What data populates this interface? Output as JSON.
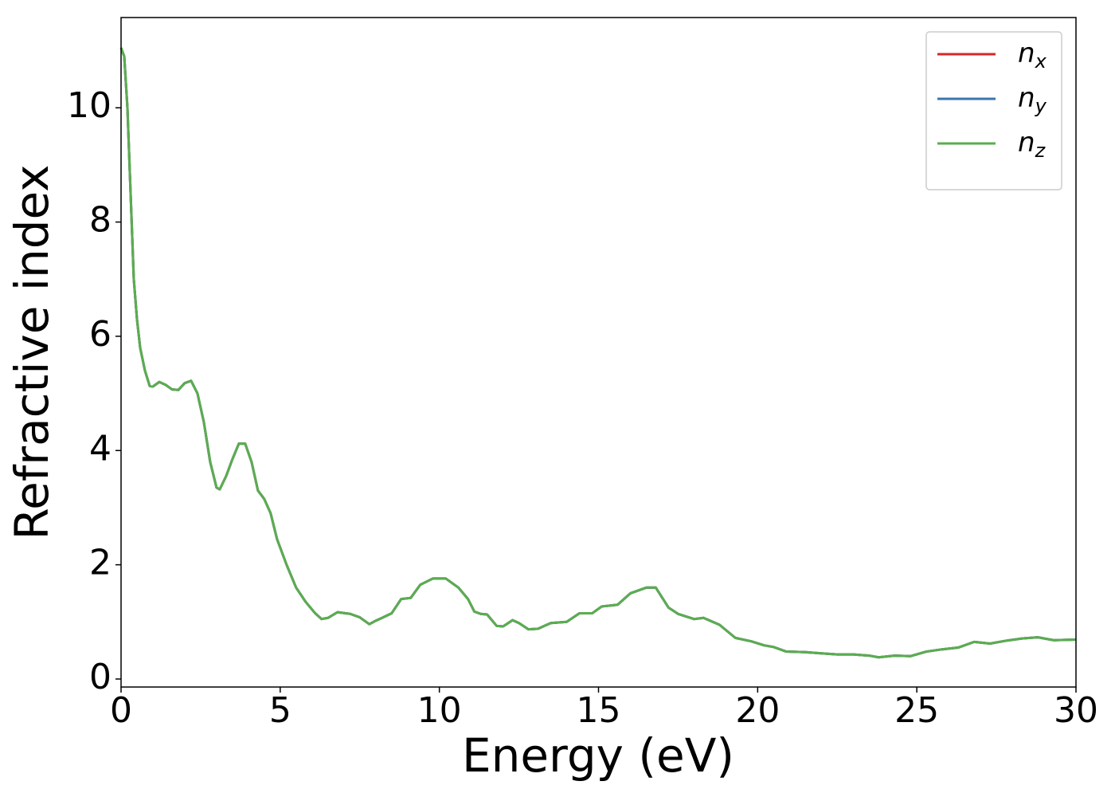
{
  "chart_data": {
    "type": "line",
    "xlabel": "Energy (eV)",
    "ylabel": "Refractive index",
    "x": [
      0,
      0.1,
      0.2,
      0.3,
      0.4,
      0.5,
      0.6,
      0.75,
      0.9,
      1.0,
      1.2,
      1.4,
      1.6,
      1.8,
      2.0,
      2.2,
      2.4,
      2.6,
      2.8,
      3.0,
      3.1,
      3.3,
      3.5,
      3.7,
      3.9,
      4.1,
      4.3,
      4.5,
      4.7,
      4.9,
      5.2,
      5.5,
      5.8,
      6.1,
      6.3,
      6.5,
      6.8,
      7.2,
      7.5,
      7.8,
      8.0,
      8.2,
      8.5,
      8.8,
      9.1,
      9.4,
      9.8,
      10.2,
      10.6,
      10.9,
      11.1,
      11.3,
      11.5,
      11.8,
      12.0,
      12.3,
      12.5,
      12.8,
      13.1,
      13.5,
      14.0,
      14.4,
      14.8,
      15.1,
      15.6,
      16.0,
      16.5,
      16.8,
      17.2,
      17.5,
      18.0,
      18.3,
      18.8,
      19.3,
      19.8,
      20.2,
      20.5,
      20.9,
      21.5,
      22.0,
      22.5,
      23.0,
      23.5,
      23.8,
      24.3,
      24.8,
      25.3,
      25.8,
      26.3,
      26.8,
      27.3,
      27.8,
      28.3,
      28.8,
      29.3,
      30
    ],
    "series": [
      {
        "name": "nx",
        "color": "#d62728",
        "values": [
          11.05,
          10.9,
          10.0,
          8.5,
          7.0,
          6.3,
          5.8,
          5.4,
          5.13,
          5.12,
          5.2,
          5.15,
          5.07,
          5.06,
          5.18,
          5.22,
          5.0,
          4.5,
          3.8,
          3.35,
          3.32,
          3.55,
          3.85,
          4.12,
          4.12,
          3.8,
          3.3,
          3.15,
          2.9,
          2.45,
          2.0,
          1.6,
          1.35,
          1.15,
          1.05,
          1.07,
          1.17,
          1.14,
          1.08,
          0.96,
          1.02,
          1.07,
          1.15,
          1.4,
          1.42,
          1.65,
          1.76,
          1.76,
          1.6,
          1.4,
          1.18,
          1.14,
          1.13,
          0.93,
          0.92,
          1.03,
          0.98,
          0.87,
          0.88,
          0.98,
          1.0,
          1.15,
          1.15,
          1.27,
          1.3,
          1.5,
          1.6,
          1.6,
          1.25,
          1.14,
          1.05,
          1.07,
          0.95,
          0.72,
          0.66,
          0.59,
          0.56,
          0.48,
          0.47,
          0.45,
          0.43,
          0.43,
          0.41,
          0.38,
          0.41,
          0.4,
          0.48,
          0.52,
          0.55,
          0.65,
          0.62,
          0.67,
          0.71,
          0.73,
          0.68,
          0.69
        ]
      },
      {
        "name": "ny",
        "color": "#3b75af",
        "values": [
          11.05,
          10.9,
          10.0,
          8.5,
          7.0,
          6.3,
          5.8,
          5.4,
          5.13,
          5.12,
          5.2,
          5.15,
          5.07,
          5.06,
          5.18,
          5.22,
          5.0,
          4.5,
          3.8,
          3.35,
          3.32,
          3.55,
          3.85,
          4.12,
          4.12,
          3.8,
          3.3,
          3.15,
          2.9,
          2.45,
          2.0,
          1.6,
          1.35,
          1.15,
          1.05,
          1.07,
          1.17,
          1.14,
          1.08,
          0.96,
          1.02,
          1.07,
          1.15,
          1.4,
          1.42,
          1.65,
          1.76,
          1.76,
          1.6,
          1.4,
          1.18,
          1.14,
          1.13,
          0.93,
          0.92,
          1.03,
          0.98,
          0.87,
          0.88,
          0.98,
          1.0,
          1.15,
          1.15,
          1.27,
          1.3,
          1.5,
          1.6,
          1.6,
          1.25,
          1.14,
          1.05,
          1.07,
          0.95,
          0.72,
          0.66,
          0.59,
          0.56,
          0.48,
          0.47,
          0.45,
          0.43,
          0.43,
          0.41,
          0.38,
          0.41,
          0.4,
          0.48,
          0.52,
          0.55,
          0.65,
          0.62,
          0.67,
          0.71,
          0.73,
          0.68,
          0.69
        ]
      },
      {
        "name": "nz",
        "color": "#5aad50",
        "values": [
          11.05,
          10.9,
          10.0,
          8.5,
          7.0,
          6.3,
          5.8,
          5.4,
          5.13,
          5.12,
          5.2,
          5.15,
          5.07,
          5.06,
          5.18,
          5.22,
          5.0,
          4.5,
          3.8,
          3.35,
          3.32,
          3.55,
          3.85,
          4.12,
          4.12,
          3.8,
          3.3,
          3.15,
          2.9,
          2.45,
          2.0,
          1.6,
          1.35,
          1.15,
          1.05,
          1.07,
          1.17,
          1.14,
          1.08,
          0.96,
          1.02,
          1.07,
          1.15,
          1.4,
          1.42,
          1.65,
          1.76,
          1.76,
          1.6,
          1.4,
          1.18,
          1.14,
          1.13,
          0.93,
          0.92,
          1.03,
          0.98,
          0.87,
          0.88,
          0.98,
          1.0,
          1.15,
          1.15,
          1.27,
          1.3,
          1.5,
          1.6,
          1.6,
          1.25,
          1.14,
          1.05,
          1.07,
          0.95,
          0.72,
          0.66,
          0.59,
          0.56,
          0.48,
          0.47,
          0.45,
          0.43,
          0.43,
          0.41,
          0.38,
          0.41,
          0.4,
          0.48,
          0.52,
          0.55,
          0.65,
          0.62,
          0.67,
          0.71,
          0.73,
          0.68,
          0.69
        ]
      }
    ],
    "xlim": [
      0,
      30
    ],
    "xticks": [
      0,
      5,
      10,
      15,
      20,
      25,
      30
    ],
    "ylim": [
      -0.14,
      11.58
    ],
    "yticks": [
      0,
      2,
      4,
      6,
      8,
      10
    ],
    "legend": "upper right",
    "grid": false
  }
}
